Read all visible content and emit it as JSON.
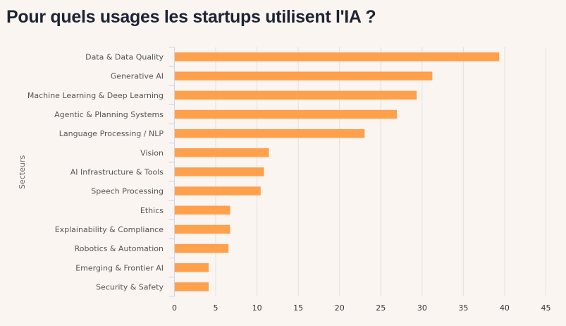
{
  "title": "Pour quels usages les startups utilisent l'IA ?",
  "chart_data": {
    "type": "bar",
    "orientation": "horizontal",
    "title": "Pour quels usages les startups utilisent l'IA ?",
    "xlabel": "",
    "ylabel": "Secteurs",
    "xlim": [
      0,
      45
    ],
    "xticks": [
      0,
      5,
      10,
      15,
      20,
      25,
      30,
      35,
      40,
      45
    ],
    "grid": true,
    "bar_color": "#ffa04d",
    "categories": [
      "Data & Data Quality",
      "Generative AI",
      "Machine Learning & Deep Learning",
      "Agentic & Planning Systems",
      "Language Processing / NLP",
      "Vision",
      "AI Infrastructure & Tools",
      "Speech Processing",
      "Ethics",
      "Explainability & Compliance",
      "Robotics & Automation",
      "Emerging & Frontier AI",
      "Security & Safety"
    ],
    "values": [
      39.3,
      31.2,
      29.3,
      26.9,
      23.0,
      11.4,
      10.8,
      10.4,
      6.7,
      6.7,
      6.5,
      4.1,
      4.1
    ]
  }
}
